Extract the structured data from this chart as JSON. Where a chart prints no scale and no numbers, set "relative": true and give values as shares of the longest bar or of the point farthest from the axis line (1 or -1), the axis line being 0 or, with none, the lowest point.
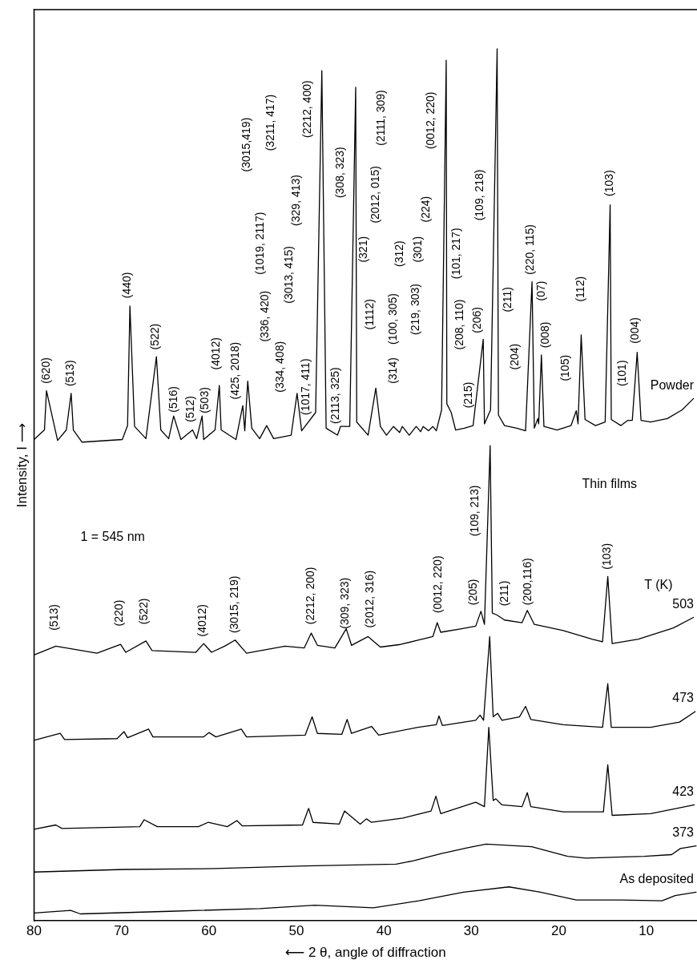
{
  "chart_data": {
    "type": "line",
    "relative": true,
    "xlabel": "⟵ 2 θ, angle of diffraction",
    "ylabel": "Intensity, I ⟶",
    "xlim": [
      80,
      4.2
    ],
    "xticks": [
      80,
      70,
      60,
      50,
      40,
      30,
      20,
      10
    ],
    "grid": false,
    "legend": false,
    "marker": "none",
    "line_style": "solid",
    "series": [
      {
        "name": "Powder",
        "color": "#000000",
        "x": [
          80,
          78.8,
          78.57,
          77.3,
          76.3,
          75.75,
          75.5,
          74.5,
          69.9,
          69.3,
          69.03,
          68.5,
          67.2,
          66.0,
          65.5,
          64.6,
          64.03,
          63.2,
          61.87,
          61.4,
          60.78,
          60.6,
          59.3,
          58.81,
          58.6,
          56.9,
          56.13,
          55.9,
          55.56,
          55.1,
          54.2,
          53.4,
          52.6,
          50.6,
          49.92,
          49.4,
          47.8,
          47.09,
          46.6,
          45.3,
          44.95,
          43.9,
          43.22,
          43.1,
          41.8,
          40.92,
          40.4,
          39.7,
          38.9,
          38.2,
          37.9,
          37.1,
          36.3,
          35.8,
          35.5,
          34.9,
          34.4,
          34.0,
          33.4,
          32.87,
          32.8,
          32.3,
          31.8,
          30.8,
          29.8,
          28.64,
          28.5,
          27.8,
          27.05,
          26.9,
          26.2,
          24.8,
          23.8,
          23.06,
          22.8,
          22.4,
          22.3,
          21.99,
          21.7,
          20.2,
          18.6,
          18.0,
          17.8,
          17.44,
          17.0,
          15.8,
          14.7,
          14.13,
          14.0,
          12.9,
          12.1,
          11.6,
          11.04,
          10.6,
          9.5,
          7.6,
          5.9,
          4.6
        ],
        "values": [
          0.552,
          0.563,
          0.608,
          0.551,
          0.563,
          0.605,
          0.563,
          0.549,
          0.552,
          0.568,
          0.705,
          0.567,
          0.553,
          0.647,
          0.563,
          0.553,
          0.579,
          0.552,
          0.563,
          0.553,
          0.579,
          0.552,
          0.563,
          0.614,
          0.563,
          0.552,
          0.591,
          0.562,
          0.619,
          0.565,
          0.553,
          0.568,
          0.553,
          0.557,
          0.605,
          0.562,
          0.583,
          0.975,
          0.565,
          0.557,
          0.567,
          0.567,
          0.956,
          0.572,
          0.557,
          0.611,
          0.567,
          0.557,
          0.567,
          0.56,
          0.567,
          0.557,
          0.567,
          0.561,
          0.567,
          0.562,
          0.567,
          0.562,
          0.586,
          0.987,
          0.593,
          0.583,
          0.563,
          0.565,
          0.568,
          0.667,
          0.57,
          0.586,
          1.0,
          0.58,
          0.568,
          0.565,
          0.562,
          0.733,
          0.565,
          0.576,
          0.57,
          0.649,
          0.567,
          0.563,
          0.568,
          0.585,
          0.57,
          0.672,
          0.575,
          0.568,
          0.572,
          0.821,
          0.575,
          0.568,
          0.574,
          0.574,
          0.652,
          0.574,
          0.572,
          0.576,
          0.586,
          0.599
        ]
      },
      {
        "name": "503",
        "color": "#000000",
        "x": [
          80,
          77.5,
          72.8,
          70.1,
          69.5,
          67.2,
          66.5,
          61.5,
          60.6,
          59.7,
          58.2,
          57.0,
          55.7,
          51.3,
          49.1,
          48.3,
          47.6,
          45.6,
          44.3,
          43.7,
          41.8,
          40.4,
          38.1,
          36.1,
          34.4,
          33.9,
          33.5,
          31.1,
          29.5,
          28.9,
          28.5,
          27.85,
          27.6,
          27.1,
          26.2,
          24.2,
          23.6,
          22.8,
          19.5,
          16.2,
          15.0,
          14.4,
          13.9,
          10.9,
          6.9,
          4.6
        ],
        "values": [
          0.305,
          0.315,
          0.307,
          0.317,
          0.308,
          0.321,
          0.31,
          0.308,
          0.318,
          0.308,
          0.315,
          0.322,
          0.307,
          0.315,
          0.313,
          0.33,
          0.316,
          0.313,
          0.335,
          0.316,
          0.326,
          0.314,
          0.317,
          0.322,
          0.326,
          0.342,
          0.331,
          0.335,
          0.338,
          0.355,
          0.34,
          0.545,
          0.353,
          0.351,
          0.345,
          0.342,
          0.356,
          0.34,
          0.333,
          0.323,
          0.32,
          0.395,
          0.318,
          0.323,
          0.336,
          0.348
        ]
      },
      {
        "name": "473",
        "color": "#000000",
        "x": [
          80,
          77.0,
          76.5,
          70.5,
          69.7,
          69.3,
          66.9,
          66.4,
          60.6,
          60.0,
          59.2,
          56.3,
          55.7,
          49.0,
          48.2,
          47.6,
          44.8,
          44.2,
          43.7,
          41.4,
          40.6,
          36.1,
          34.0,
          33.7,
          33.3,
          29.5,
          29.0,
          28.6,
          27.9,
          27.5,
          27.0,
          26.5,
          24.5,
          23.8,
          23.2,
          19.5,
          15.0,
          14.4,
          14.0,
          9.5,
          6.2,
          4.4
        ],
        "values": [
          0.207,
          0.215,
          0.208,
          0.209,
          0.217,
          0.21,
          0.22,
          0.211,
          0.211,
          0.216,
          0.211,
          0.22,
          0.211,
          0.213,
          0.234,
          0.215,
          0.214,
          0.231,
          0.215,
          0.223,
          0.213,
          0.222,
          0.225,
          0.235,
          0.224,
          0.23,
          0.236,
          0.23,
          0.326,
          0.234,
          0.238,
          0.23,
          0.234,
          0.246,
          0.231,
          0.225,
          0.222,
          0.272,
          0.222,
          0.222,
          0.228,
          0.24
        ]
      },
      {
        "name": "423",
        "color": "#000000",
        "x": [
          80,
          77.5,
          76.8,
          67.9,
          67.4,
          65.9,
          61.2,
          60.1,
          57.9,
          56.8,
          56.2,
          49.3,
          48.6,
          48.1,
          45.1,
          44.5,
          42.7,
          42.0,
          41.4,
          37.8,
          34.6,
          34.05,
          33.5,
          29.5,
          28.5,
          28.0,
          27.5,
          27.2,
          26.5,
          24.2,
          23.6,
          23.2,
          19.5,
          14.9,
          14.4,
          13.9,
          9.5,
          4.5
        ],
        "values": [
          0.105,
          0.11,
          0.106,
          0.108,
          0.116,
          0.108,
          0.108,
          0.113,
          0.108,
          0.115,
          0.109,
          0.11,
          0.129,
          0.113,
          0.111,
          0.126,
          0.111,
          0.117,
          0.113,
          0.118,
          0.126,
          0.143,
          0.123,
          0.136,
          0.131,
          0.222,
          0.138,
          0.14,
          0.133,
          0.131,
          0.147,
          0.131,
          0.125,
          0.125,
          0.179,
          0.121,
          0.123,
          0.133
        ]
      },
      {
        "name": "373",
        "color": "#000000",
        "x": [
          80,
          69.6,
          59.3,
          49.0,
          38.6,
          36.6,
          33.5,
          30.4,
          28.3,
          23.1,
          19.0,
          16.9,
          10.2,
          7.1,
          6.1,
          4.3
        ],
        "values": [
          0.056,
          0.059,
          0.06,
          0.063,
          0.065,
          0.069,
          0.077,
          0.084,
          0.088,
          0.085,
          0.074,
          0.072,
          0.074,
          0.076,
          0.083,
          0.086
        ]
      },
      {
        "name": "As deposited",
        "color": "#000000",
        "x": [
          80,
          75.8,
          74.7,
          64.5,
          54.2,
          47.9,
          41.2,
          36.0,
          30.9,
          25.7,
          22.1,
          18.0,
          12.8,
          8.2,
          6.7,
          4.3
        ],
        "values": [
          0.009,
          0.012,
          0.008,
          0.011,
          0.014,
          0.018,
          0.015,
          0.023,
          0.033,
          0.039,
          0.033,
          0.024,
          0.024,
          0.023,
          0.029,
          0.033
        ]
      }
    ],
    "annotations": [
      "Thin films",
      "1 = 545 nm",
      "T (K)",
      "(620)",
      "(513)",
      "(440)",
      "(522)",
      "(516)",
      "(512)",
      "(503)",
      "(4012)",
      "(425, 2018)",
      "(3015,419)",
      "(1019, 2117)",
      "(336, 420)",
      "(3211, 417)",
      "(334, 408)",
      "(3013, 415)",
      "(329, 413)",
      "(1017, 411)",
      "(2212, 400)",
      "(2113, 325)",
      "(308, 323)",
      "(321)",
      "(1112)",
      "(2012, 015)",
      "(2111, 309)",
      "(314)",
      "(100, 305)",
      "(312)",
      "(219, 303)",
      "(301)",
      "(224)",
      "(0012, 220)",
      "(101, 217)",
      "(208, 110)",
      "(215)",
      "(206)",
      "(109, 218)",
      "(211)",
      "(204)",
      "(220, 115)",
      "(07)",
      "(008)",
      "(105)",
      "(112)",
      "(103)",
      "(101)",
      "(004)",
      "(513)",
      "(220)",
      "(522)",
      "(4012)",
      "(3015, 219)",
      "(2212, 200)",
      "(309, 323)",
      "(2012, 316)",
      "(0012, 220)",
      "(205)",
      "(109, 213)",
      "(211)",
      "(200,116)",
      "(103)"
    ]
  }
}
